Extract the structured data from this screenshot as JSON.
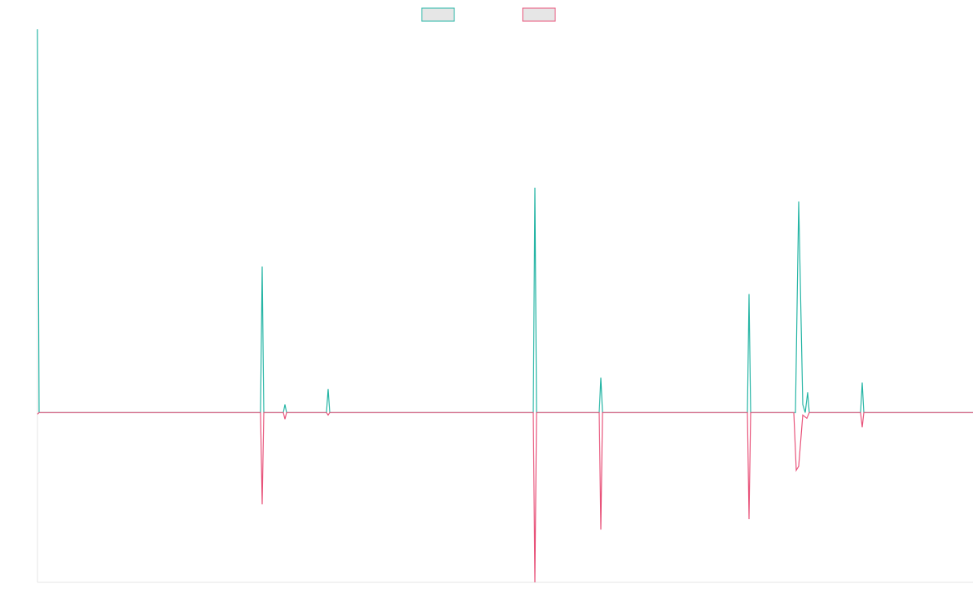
{
  "chart_data": {
    "type": "line",
    "title": "",
    "xlabel": "",
    "ylabel": "",
    "x_range": [
      0,
      1149
    ],
    "ylim": [
      -209,
      472
    ],
    "grid": false,
    "legend_position": "top-center",
    "series": [
      {
        "color": "#26b5a5",
        "fill": "#e6e6e6",
        "points": [
          [
            0,
            472
          ],
          [
            2,
            0
          ],
          [
            274,
            0
          ],
          [
            276,
            180
          ],
          [
            278,
            0
          ],
          [
            302,
            0
          ],
          [
            304,
            10
          ],
          [
            306,
            0
          ],
          [
            355,
            0
          ],
          [
            357,
            29
          ],
          [
            359,
            0
          ],
          [
            609,
            0
          ],
          [
            611,
            277
          ],
          [
            613,
            0
          ],
          [
            690,
            0
          ],
          [
            692,
            43
          ],
          [
            694,
            0
          ],
          [
            872,
            0
          ],
          [
            874,
            146
          ],
          [
            876,
            0
          ],
          [
            931,
            0
          ],
          [
            935,
            260
          ],
          [
            940,
            10
          ],
          [
            943,
            0
          ],
          [
            946,
            25
          ],
          [
            948,
            0
          ],
          [
            1011,
            0
          ],
          [
            1013,
            37
          ],
          [
            1015,
            0
          ],
          [
            1149,
            0
          ]
        ]
      },
      {
        "color": "#e8537a",
        "fill": "#e6e6e6",
        "points": [
          [
            0,
            -2
          ],
          [
            2,
            0
          ],
          [
            274,
            0
          ],
          [
            276,
            -113
          ],
          [
            278,
            0
          ],
          [
            302,
            0
          ],
          [
            304,
            -8
          ],
          [
            306,
            0
          ],
          [
            355,
            0
          ],
          [
            357,
            -3
          ],
          [
            359,
            0
          ],
          [
            609,
            0
          ],
          [
            611,
            -209
          ],
          [
            613,
            0
          ],
          [
            690,
            0
          ],
          [
            692,
            -144
          ],
          [
            694,
            0
          ],
          [
            872,
            0
          ],
          [
            874,
            -131
          ],
          [
            876,
            0
          ],
          [
            929,
            0
          ],
          [
            932,
            -71
          ],
          [
            935,
            -66
          ],
          [
            940,
            -3
          ],
          [
            945,
            -7
          ],
          [
            948,
            0
          ],
          [
            1011,
            0
          ],
          [
            1013,
            -18
          ],
          [
            1015,
            0
          ],
          [
            1149,
            0
          ]
        ]
      }
    ]
  }
}
